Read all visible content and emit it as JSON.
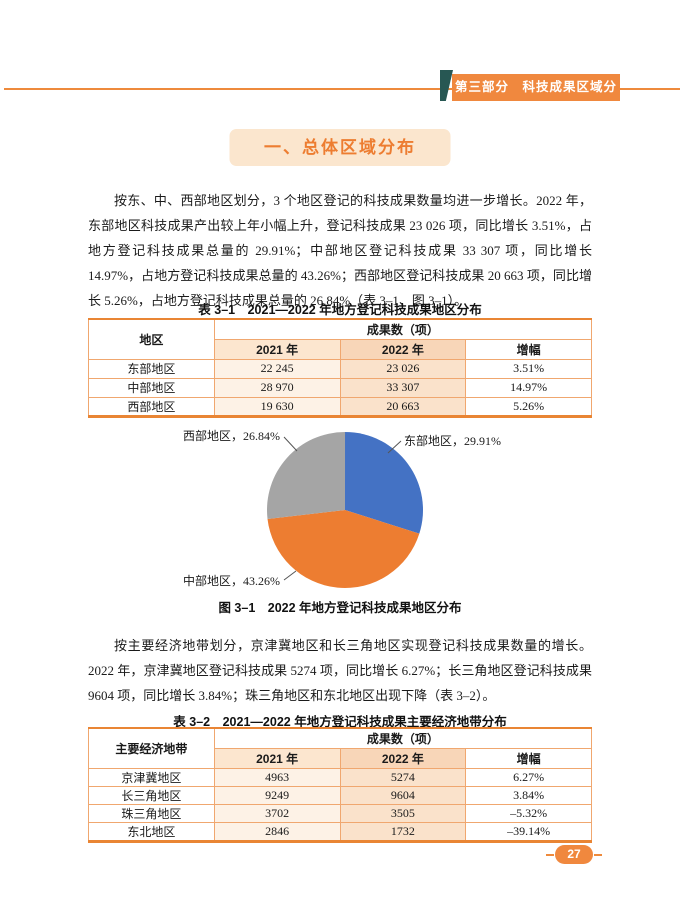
{
  "page": {
    "accent_color": "#EE8A3C",
    "badge_color": "#F0883E",
    "fold_color": "#275753",
    "header_badge": "第三部分　科技成果区域分布",
    "section_title": "一、总体区域分布",
    "page_number": "27"
  },
  "paragraphs": {
    "p1": "按东、中、西部地区划分，3 个地区登记的科技成果数量均进一步增长。2022 年，东部地区科技成果产出较上年小幅上升，登记科技成果 23 026 项，同比增长 3.51%，占地方登记科技成果总量的 29.91%；中部地区登记科技成果 33 307 项，同比增长 14.97%，占地方登记科技成果总量的 43.26%；西部地区登记科技成果 20 663 项，同比增长 5.26%，占地方登记科技成果总量的 26.84%（表 3–1、图 3–1）。",
    "p2": "按主要经济地带划分，京津冀地区和长三角地区实现登记科技成果数量的增长。2022 年，京津冀地区登记科技成果 5274 项，同比增长 6.27%；长三角地区登记科技成果 9604 项，同比增长 3.84%；珠三角地区和东北地区出现下降（表 3–2）。"
  },
  "table1": {
    "caption": "表 3–1　2021—2022 年地方登记科技成果地区分布",
    "head": {
      "region": "地区",
      "group": "成果数（项）",
      "y2021": "2021 年",
      "y2022": "2022 年",
      "growth": "增幅"
    },
    "rows": [
      {
        "region": "东部地区",
        "y2021": "22 245",
        "y2022": "23 026",
        "growth": "3.51%"
      },
      {
        "region": "中部地区",
        "y2021": "28 970",
        "y2022": "33 307",
        "growth": "14.97%"
      },
      {
        "region": "西部地区",
        "y2021": "19 630",
        "y2022": "20 663",
        "growth": "5.26%"
      }
    ]
  },
  "figure": {
    "caption": "图 3–1　2022 年地方登记科技成果地区分布"
  },
  "chart_data": {
    "type": "pie",
    "title": "图 3–1 2022 年地方登记科技成果地区分布",
    "labels": [
      "东部地区",
      "中部地区",
      "西部地区"
    ],
    "values": [
      29.91,
      43.26,
      26.84
    ],
    "unit": "%",
    "colors": [
      "#4472C4",
      "#ED7D31",
      "#A5A5A5"
    ],
    "start_angle_deg": 0,
    "direction": "clockwise",
    "label_separator": "，",
    "legend_position": "callout-labels"
  },
  "table2": {
    "caption": "表 3–2　2021—2022 年地方登记科技成果主要经济地带分布",
    "head": {
      "region": "主要经济地带",
      "group": "成果数（项）",
      "y2021": "2021 年",
      "y2022": "2022 年",
      "growth": "增幅"
    },
    "rows": [
      {
        "region": "京津冀地区",
        "y2021": "4963",
        "y2022": "5274",
        "growth": "6.27%"
      },
      {
        "region": "长三角地区",
        "y2021": "9249",
        "y2022": "9604",
        "growth": "3.84%"
      },
      {
        "region": "珠三角地区",
        "y2021": "3702",
        "y2022": "3505",
        "growth": "–5.32%"
      },
      {
        "region": "东北地区",
        "y2021": "2846",
        "y2022": "1732",
        "growth": "–39.14%"
      }
    ]
  }
}
